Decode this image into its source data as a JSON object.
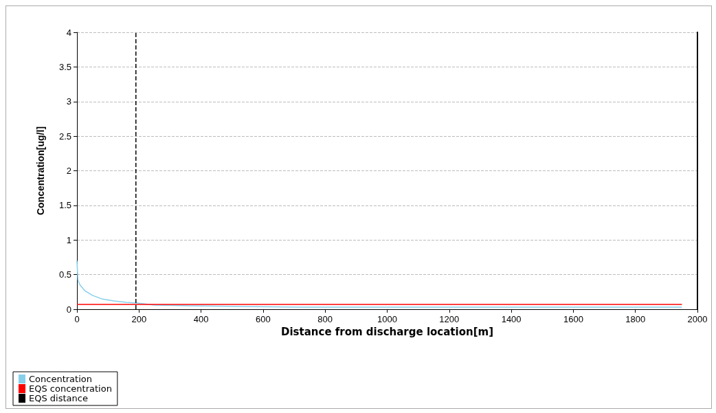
{
  "chart_data": {
    "type": "line",
    "xlabel": "Distance from discharge location[m]",
    "ylabel": "Concentration[ug/l]",
    "xlim": [
      0,
      2000
    ],
    "xticks": [
      0,
      200,
      400,
      600,
      800,
      1000,
      1200,
      1400,
      1600,
      1800,
      2000
    ],
    "ylim": [
      0,
      4
    ],
    "yticks": [
      0,
      0.5,
      1,
      1.5,
      2,
      2.5,
      3,
      3.5,
      4
    ],
    "grid": "y",
    "legend": "bottom left",
    "marker": "none",
    "series": [
      {
        "name": "Concentration",
        "color": "#87ceeb",
        "x": [
          0,
          3,
          10,
          25,
          50,
          80,
          120,
          160,
          195,
          250,
          360,
          720,
          1950
        ],
        "values": [
          0.7,
          0.42,
          0.35,
          0.27,
          0.2,
          0.15,
          0.12,
          0.1,
          0.09,
          0.06,
          0.05,
          0.03,
          0.03
        ]
      },
      {
        "name": "EQS concentration",
        "color": "#ff0000",
        "x": [
          0,
          1950
        ],
        "values": [
          0.07,
          0.07
        ]
      },
      {
        "name": "EQS distance",
        "color": "#000000",
        "x": [
          190,
          190
        ],
        "values": [
          0,
          4
        ],
        "line_style": "dashed"
      }
    ]
  }
}
